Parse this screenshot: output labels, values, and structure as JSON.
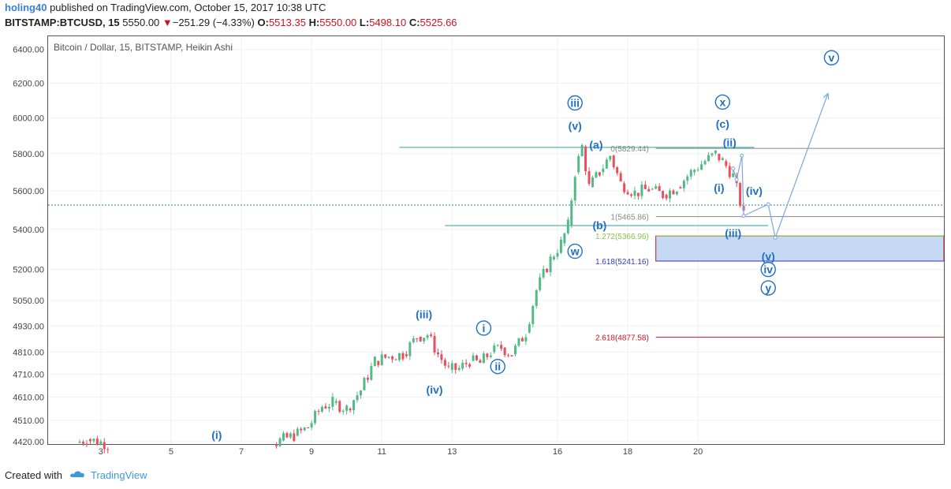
{
  "header": {
    "author": "holing40",
    "published_text": "published on TradingView.com, October 15, 2017 10:38 UTC",
    "symbol": "BITSTAMP:BTCUSD, 15",
    "last_price": "5550.00",
    "change_arrow": "▼",
    "change": "−251.29 (−4.33%)",
    "o_label": "O:",
    "o_value": "5513.35",
    "h_label": "H:",
    "h_value": "5550.00",
    "l_label": "L:",
    "l_value": "5498.10",
    "c_label": "C:",
    "c_value": "5525.66"
  },
  "footer": {
    "created_with": "Created with",
    "brand": "TradingView"
  },
  "colors": {
    "up": "#53b987",
    "down": "#eb4d5c",
    "wave": "#1f6fc6",
    "fib_box": "#c5d9f5",
    "trendline": "#26a69a"
  },
  "chart_data": {
    "type": "line",
    "title": "Bitcoin / Dollar, 15, BITSTAMP, Heikin Ashi",
    "y_scale": "log",
    "ylim": [
      4410,
      6480
    ],
    "xlim": [
      1.5,
      27.0
    ],
    "y_ticks": [
      "6400.00",
      "6200.00",
      "6000.00",
      "5800.00",
      "5600.00",
      "5400.00",
      "5200.00",
      "5050.00",
      "4930.00",
      "4810.00",
      "4710.00",
      "4610.00",
      "4510.00",
      "4420.00"
    ],
    "y_tick_values": [
      6400,
      6200,
      6000,
      5800,
      5600,
      5400,
      5200,
      5050,
      4930,
      4810,
      4710,
      4610,
      4510,
      4420
    ],
    "x_ticks": [
      {
        "x": 3,
        "label": "3"
      },
      {
        "x": 5,
        "label": "5"
      },
      {
        "x": 7,
        "label": "7"
      },
      {
        "x": 9,
        "label": "9"
      },
      {
        "x": 11,
        "label": "11"
      },
      {
        "x": 13,
        "label": "13"
      },
      {
        "x": 16,
        "label": "16"
      },
      {
        "x": 18,
        "label": "18"
      },
      {
        "x": 20,
        "label": "20"
      }
    ],
    "last_price_line": 5525.66,
    "series": [
      {
        "points": [
          [
            2.3,
            4415
          ],
          [
            2.6,
            4430
          ],
          [
            3.0,
            4418
          ],
          [
            3.2,
            4408
          ],
          [
            7.9,
            4410
          ],
          [
            8.1,
            4425
          ],
          [
            8.5,
            4445
          ],
          [
            8.9,
            4480
          ],
          [
            9.3,
            4570
          ],
          [
            9.6,
            4585
          ],
          [
            10.0,
            4560
          ],
          [
            10.4,
            4640
          ],
          [
            10.8,
            4770
          ],
          [
            11.2,
            4790
          ],
          [
            11.6,
            4800
          ],
          [
            12.0,
            4880
          ],
          [
            12.3,
            4890
          ],
          [
            12.6,
            4800
          ],
          [
            12.9,
            4730
          ],
          [
            13.2,
            4735
          ],
          [
            13.5,
            4770
          ],
          [
            13.8,
            4760
          ],
          [
            14.1,
            4810
          ],
          [
            14.4,
            4830
          ],
          [
            14.7,
            4800
          ],
          [
            15.1,
            4900
          ],
          [
            15.4,
            5100
          ],
          [
            15.8,
            5250
          ],
          [
            16.1,
            5330
          ],
          [
            16.3,
            5420
          ],
          [
            16.5,
            5700
          ],
          [
            16.7,
            5840
          ],
          [
            16.9,
            5620
          ],
          [
            17.2,
            5700
          ],
          [
            17.5,
            5790
          ],
          [
            17.8,
            5640
          ],
          [
            18.2,
            5590
          ],
          [
            18.6,
            5610
          ],
          [
            19.0,
            5580
          ],
          [
            19.4,
            5620
          ],
          [
            19.8,
            5700
          ],
          [
            20.2,
            5760
          ],
          [
            20.5,
            5800
          ],
          [
            20.7,
            5760
          ],
          [
            21.0,
            5680
          ],
          [
            21.3,
            5470
          ]
        ]
      }
    ],
    "fib_levels": [
      {
        "label": "0(5829.44)",
        "value": 5829.44,
        "color": "#888888"
      },
      {
        "label": "1(5465.86)",
        "value": 5465.86,
        "color": "#888888"
      },
      {
        "label": "1.272(5366.96)",
        "value": 5366.96,
        "color": "#8bc34a"
      },
      {
        "label": "1.618(5241.16)",
        "value": 5241.16,
        "color": "#3939b8"
      },
      {
        "label": "2.618(4877.58)",
        "value": 4877.58,
        "color": "#d0121b"
      }
    ],
    "target_zone": {
      "y_from": 5366.96,
      "y_to": 5241.16
    },
    "horizontal_lines": [
      5835.0,
      5420.0
    ],
    "wave_path": [
      [
        21.0,
        5720
      ],
      [
        21.1,
        5660
      ],
      [
        21.25,
        5790
      ],
      [
        21.3,
        5470
      ],
      [
        22.0,
        5530
      ],
      [
        22.2,
        5358
      ],
      [
        23.7,
        6140
      ]
    ],
    "wave_labels": [
      {
        "text": "(i)",
        "x": 6.3,
        "y": 4448,
        "circled": false
      },
      {
        "text": "(iii)",
        "x": 12.2,
        "y": 4985,
        "circled": false
      },
      {
        "text": "(iv)",
        "x": 12.5,
        "y": 4643,
        "circled": false
      },
      {
        "text": "i",
        "x": 13.9,
        "y": 4920,
        "circled": true
      },
      {
        "text": "ii",
        "x": 14.3,
        "y": 4745,
        "circled": true
      },
      {
        "text": "w",
        "x": 16.5,
        "y": 5290,
        "circled": true
      },
      {
        "text": "(v)",
        "x": 16.5,
        "y": 5955,
        "circled": false
      },
      {
        "text": "iii",
        "x": 16.5,
        "y": 6085,
        "circled": true
      },
      {
        "text": "(a)",
        "x": 17.1,
        "y": 5850,
        "circled": false
      },
      {
        "text": "(b)",
        "x": 17.2,
        "y": 5422,
        "circled": false
      },
      {
        "text": "x",
        "x": 20.7,
        "y": 6090,
        "circled": true
      },
      {
        "text": "(c)",
        "x": 20.7,
        "y": 5967,
        "circled": false
      },
      {
        "text": "(ii)",
        "x": 20.9,
        "y": 5863,
        "circled": false
      },
      {
        "text": "(i)",
        "x": 20.6,
        "y": 5618,
        "circled": false
      },
      {
        "text": "(iv)",
        "x": 21.6,
        "y": 5600,
        "circled": false
      },
      {
        "text": "(iii)",
        "x": 21.0,
        "y": 5382,
        "circled": false
      },
      {
        "text": "(v)",
        "x": 22.0,
        "y": 5265,
        "circled": false
      },
      {
        "text": "iv",
        "x": 22.0,
        "y": 5200,
        "circled": true
      },
      {
        "text": "y",
        "x": 22.0,
        "y": 5110,
        "circled": true
      },
      {
        "text": "v",
        "x": 23.8,
        "y": 6350,
        "circled": true
      }
    ]
  }
}
